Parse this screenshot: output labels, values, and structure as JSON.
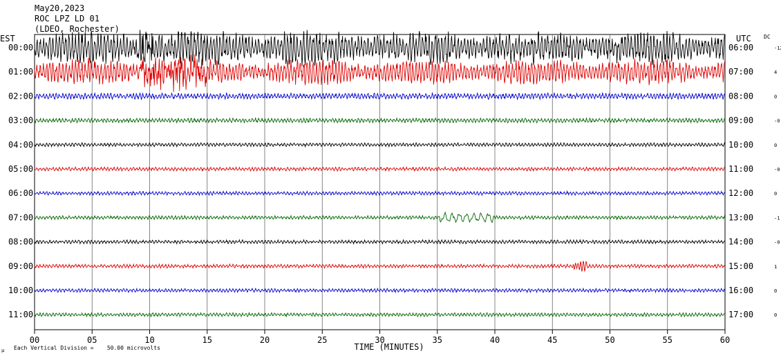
{
  "header": {
    "date": "May20,2023",
    "station": "ROC LPZ LD 01",
    "location": "(LDEO, Rochester)"
  },
  "footer": {
    "note_icon": "mu",
    "note": "Each Vertical Division =    50.00 microvolts"
  },
  "chart_data": {
    "type": "line",
    "title": "",
    "xlabel": "TIME (MINUTES)",
    "left_axis_label": "EST",
    "right_axis_label": "UTC",
    "dc_label": "DC",
    "xlim": [
      0,
      60
    ],
    "x_ticks": [
      "00",
      "05",
      "10",
      "15",
      "20",
      "25",
      "30",
      "35",
      "40",
      "45",
      "50",
      "55",
      "60"
    ],
    "grid": true,
    "trace_colors": [
      "#000000",
      "#dd0000",
      "#0000cc",
      "#006600"
    ],
    "traces": [
      {
        "est": "00:00",
        "utc": "06:00",
        "dc": "-12",
        "color": "#000000",
        "amp": 22,
        "noise": "strong"
      },
      {
        "est": "01:00",
        "utc": "07:00",
        "dc": "4",
        "color": "#dd0000",
        "amp": 16,
        "noise": "strong"
      },
      {
        "est": "02:00",
        "utc": "08:00",
        "dc": "0",
        "color": "#0000cc",
        "amp": 4,
        "noise": "moderate"
      },
      {
        "est": "03:00",
        "utc": "09:00",
        "dc": "-0",
        "color": "#006600",
        "amp": 3,
        "noise": "low"
      },
      {
        "est": "04:00",
        "utc": "10:00",
        "dc": "0",
        "color": "#000000",
        "amp": 2.5,
        "noise": "low"
      },
      {
        "est": "05:00",
        "utc": "11:00",
        "dc": "-0",
        "color": "#dd0000",
        "amp": 2.5,
        "noise": "low"
      },
      {
        "est": "06:00",
        "utc": "12:00",
        "dc": "0",
        "color": "#0000cc",
        "amp": 2.5,
        "noise": "low"
      },
      {
        "est": "07:00",
        "utc": "13:00",
        "dc": "-1",
        "color": "#006600",
        "amp": 2.5,
        "noise": "low"
      },
      {
        "est": "08:00",
        "utc": "14:00",
        "dc": "-0",
        "color": "#000000",
        "amp": 2.5,
        "noise": "low"
      },
      {
        "est": "09:00",
        "utc": "15:00",
        "dc": "1",
        "color": "#dd0000",
        "amp": 2.5,
        "noise": "low"
      },
      {
        "est": "10:00",
        "utc": "16:00",
        "dc": "0",
        "color": "#0000cc",
        "amp": 2.5,
        "noise": "low"
      },
      {
        "est": "11:00",
        "utc": "17:00",
        "dc": "0",
        "color": "#006600",
        "amp": 2.5,
        "noise": "low"
      }
    ]
  }
}
